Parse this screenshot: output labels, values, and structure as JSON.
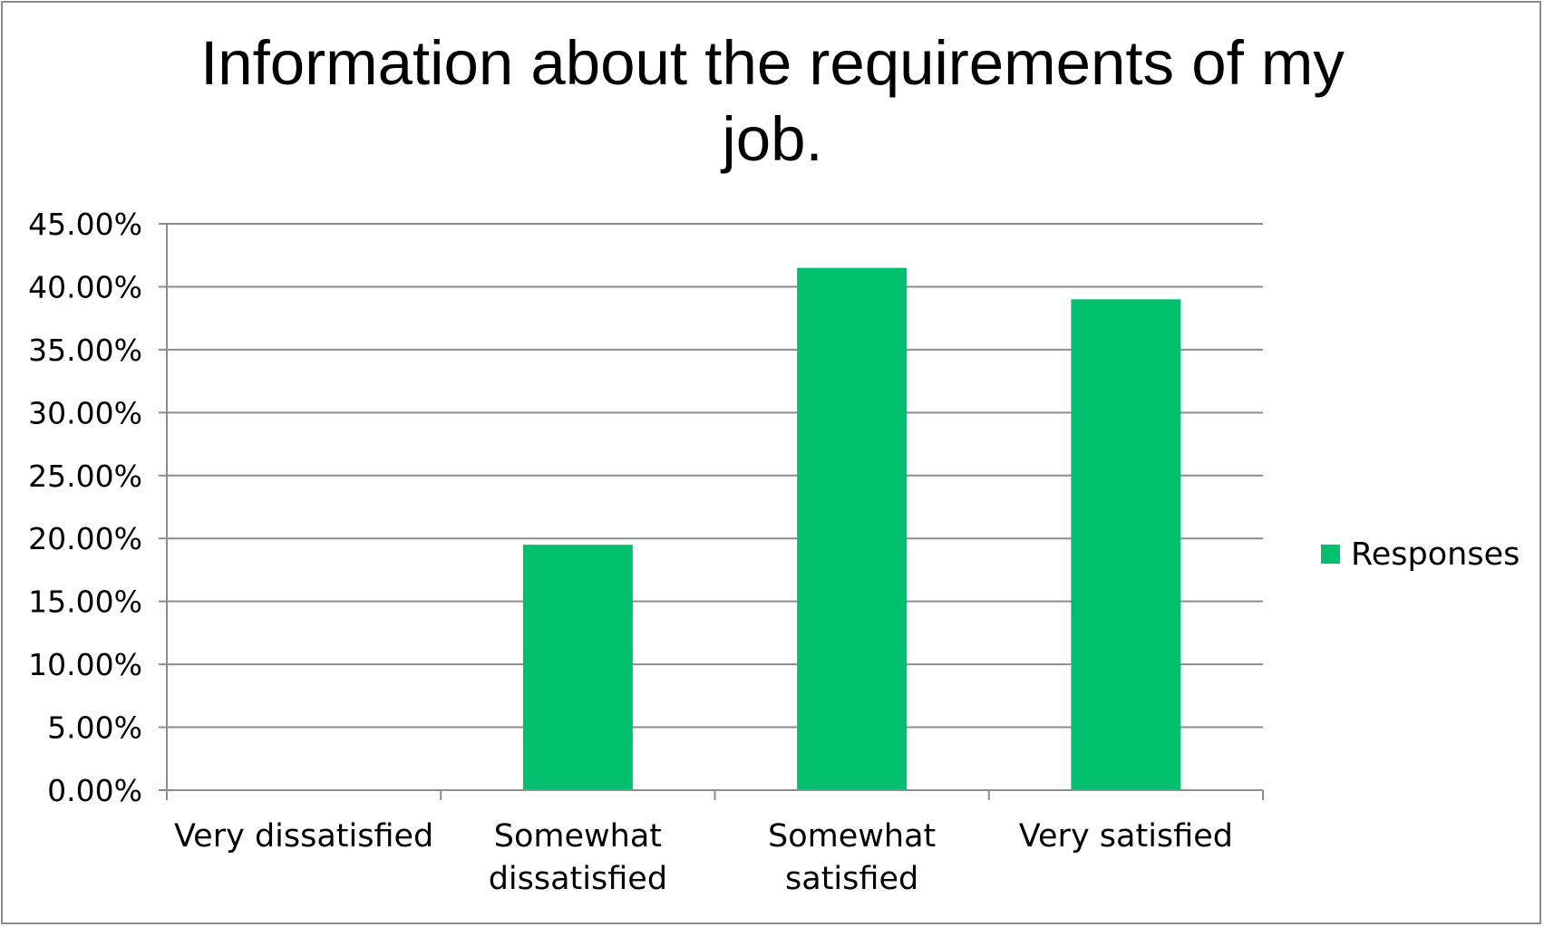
{
  "chart_data": {
    "type": "bar",
    "title": "Information about the requirements of my job.",
    "xlabel": "",
    "ylabel": "",
    "categories": [
      [
        "Very dissatisfied"
      ],
      [
        "Somewhat",
        "dissatisfied"
      ],
      [
        "Somewhat",
        "satisfied"
      ],
      [
        "Very satisfied"
      ]
    ],
    "series": [
      {
        "name": "Responses",
        "values": [
          0.0,
          19.5,
          41.5,
          39.0
        ]
      }
    ],
    "y_ticks": [
      "0.00%",
      "5.00%",
      "10.00%",
      "15.00%",
      "20.00%",
      "25.00%",
      "30.00%",
      "35.00%",
      "40.00%",
      "45.00%"
    ],
    "ylim": [
      0,
      45
    ],
    "grid": true,
    "legend_position": "right",
    "colors": {
      "bar": "#00c06e",
      "grid": "#8c8c8c",
      "axis": "#8c8c8c",
      "border": "#8c8c8c"
    }
  }
}
